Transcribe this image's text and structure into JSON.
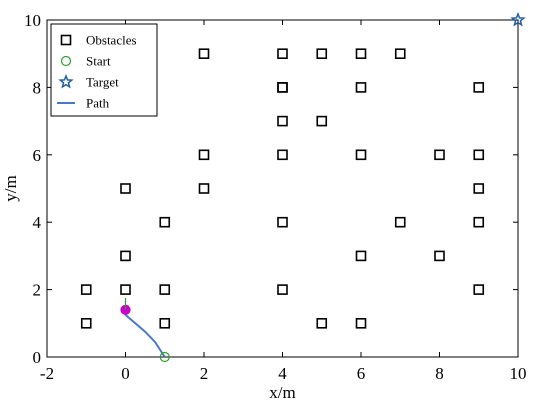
{
  "chart_data": {
    "type": "scatter",
    "xlabel": "x/m",
    "ylabel": "y/m",
    "xlim": [
      -2,
      10
    ],
    "ylim": [
      0,
      10
    ],
    "xticks": [
      "-2",
      "0",
      "2",
      "4",
      "6",
      "8",
      "10"
    ],
    "yticks": [
      "0",
      "2",
      "4",
      "6",
      "8",
      "10"
    ],
    "grid": false,
    "legend_position": "top-left",
    "legend": [
      "Obstacles",
      "Start",
      "Target",
      "Path"
    ],
    "series": [
      {
        "name": "Obstacles",
        "marker": "square",
        "color": "#000000",
        "points": [
          [
            -1,
            1
          ],
          [
            -1,
            2
          ],
          [
            0,
            2
          ],
          [
            0,
            3
          ],
          [
            0,
            5
          ],
          [
            1,
            1
          ],
          [
            1,
            2
          ],
          [
            1,
            4
          ],
          [
            2,
            5
          ],
          [
            2,
            6
          ],
          [
            2,
            9
          ],
          [
            4,
            2
          ],
          [
            4,
            4
          ],
          [
            4,
            6
          ],
          [
            4,
            7
          ],
          [
            4,
            8
          ],
          [
            4,
            8
          ],
          [
            4,
            9
          ],
          [
            5,
            1
          ],
          [
            5,
            7
          ],
          [
            5,
            9
          ],
          [
            6,
            1
          ],
          [
            6,
            3
          ],
          [
            6,
            6
          ],
          [
            6,
            8
          ],
          [
            6,
            9
          ],
          [
            7,
            4
          ],
          [
            7,
            9
          ],
          [
            8,
            3
          ],
          [
            8,
            6
          ],
          [
            9,
            2
          ],
          [
            9,
            4
          ],
          [
            9,
            5
          ],
          [
            9,
            6
          ],
          [
            9,
            8
          ]
        ]
      },
      {
        "name": "Start",
        "marker": "circle",
        "color": "#2ca02c",
        "points": [
          [
            1,
            0
          ]
        ]
      },
      {
        "name": "Target",
        "marker": "star",
        "color": "#1f5fa0",
        "points": [
          [
            10,
            10
          ]
        ]
      },
      {
        "name": "Path",
        "marker": "line",
        "color": "#4a78c8",
        "points": [
          [
            1,
            0
          ],
          [
            0.75,
            0.45
          ],
          [
            0.5,
            0.75
          ],
          [
            0.25,
            1.0
          ],
          [
            0,
            1.25
          ],
          [
            0,
            1.4
          ]
        ]
      }
    ],
    "extra_marks": [
      {
        "marker": "circle",
        "color": "#cc00cc",
        "fill": "#cc00cc",
        "points": [
          [
            0,
            1.4
          ]
        ]
      },
      {
        "marker": "vline",
        "color": "#2ca02c",
        "points": [
          [
            0,
            1.4
          ],
          [
            0,
            1.75
          ]
        ]
      }
    ]
  }
}
